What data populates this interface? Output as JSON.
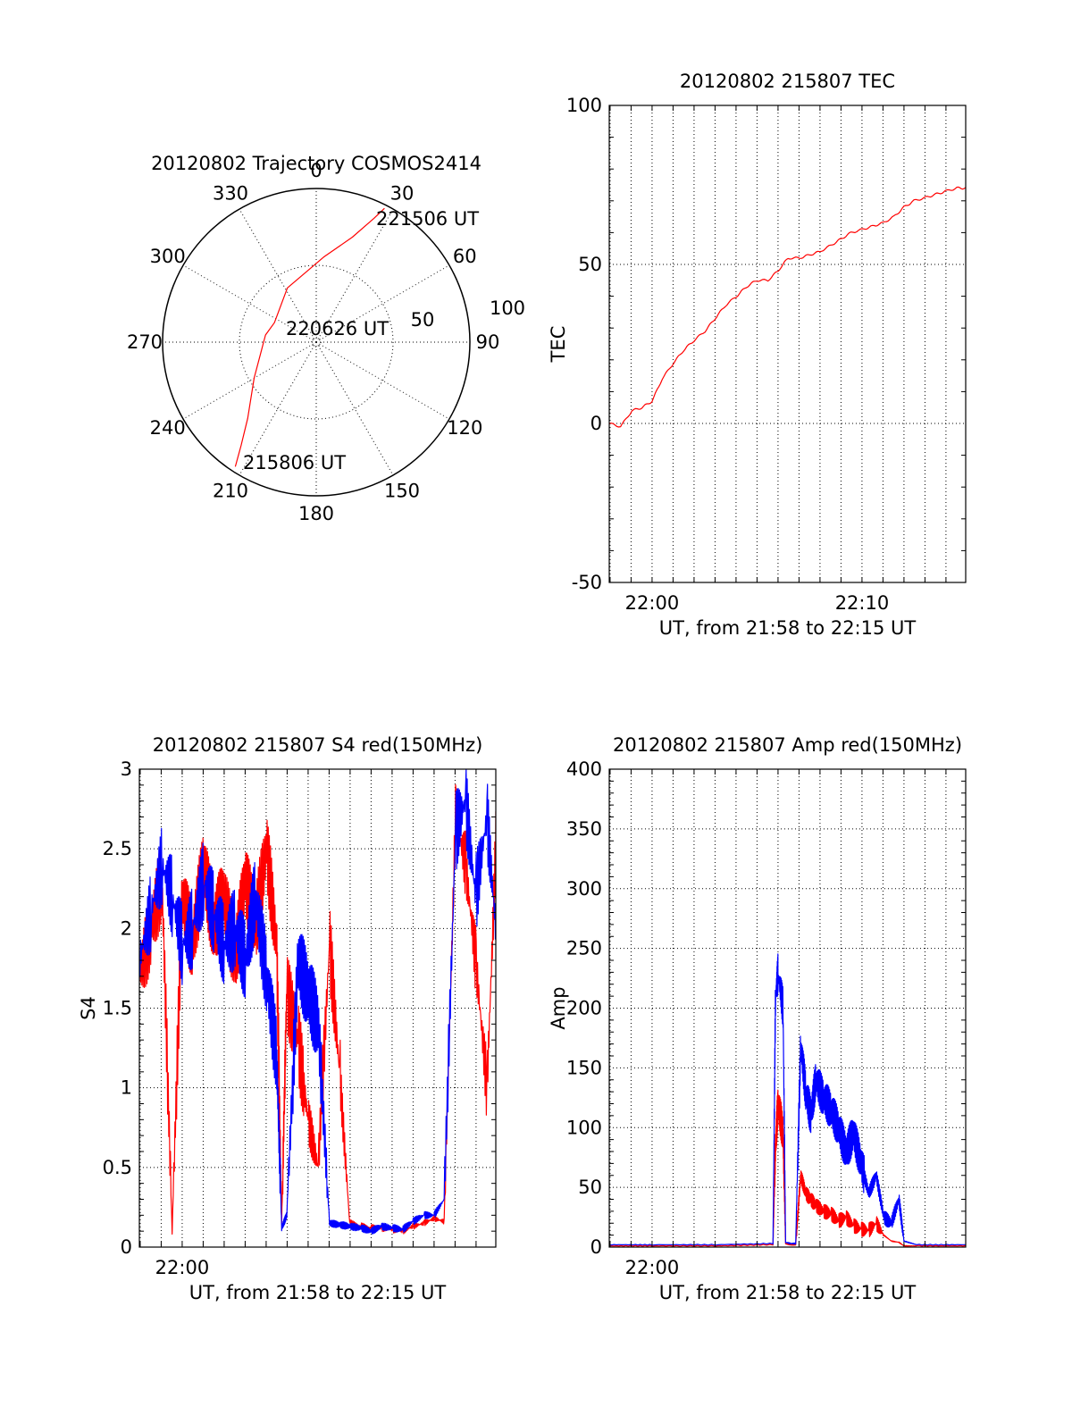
{
  "chart_data": [
    {
      "type": "polar-trajectory",
      "title": "20120802 Trajectory COSMOS2414",
      "azimuth_labels": [
        "0",
        "30",
        "60",
        "90",
        "120",
        "150",
        "180",
        "210",
        "240",
        "270",
        "300",
        "330"
      ],
      "elevation_ring_labels": [
        "50",
        "100"
      ],
      "trajectory_color": "#ff0000",
      "trajectory": [
        {
          "az": 213,
          "el": 3
        },
        {
          "az": 216,
          "el": 15
        },
        {
          "az": 222,
          "el": 30
        },
        {
          "az": 240,
          "el": 48
        },
        {
          "az": 278,
          "el": 60
        },
        {
          "az": 295,
          "el": 63
        },
        {
          "az": 332,
          "el": 54
        },
        {
          "az": 5,
          "el": 40
        },
        {
          "az": 19,
          "el": 25
        },
        {
          "az": 25,
          "el": 10
        },
        {
          "az": 27,
          "el": 2
        }
      ],
      "annotations": [
        {
          "text": "215806 UT",
          "az": 211,
          "el": 4
        },
        {
          "text": "220626 UT",
          "az": 60,
          "el": 83
        },
        {
          "text": "221506 UT",
          "az": 36,
          "el": 20
        }
      ]
    },
    {
      "type": "line",
      "title": "20120802 215807 TEC",
      "xlabel": "UT, from 21:58 to 22:15 UT",
      "ylabel": "TEC",
      "xlim": [
        21.966,
        22.249
      ],
      "ylim": [
        -50,
        100
      ],
      "yticks": [
        -50,
        0,
        50,
        100
      ],
      "xticks": [
        {
          "value": 22.0,
          "label": "22:00"
        },
        {
          "value": 22.1667,
          "label": "22:10"
        }
      ],
      "series": [
        {
          "color": "#ff0000",
          "x": [
            21.966,
            21.975,
            21.984,
            21.992,
            22.0,
            22.008,
            22.017,
            22.025,
            22.033,
            22.042,
            22.05,
            22.058,
            22.067,
            22.075,
            22.083,
            22.092,
            22.1,
            22.108,
            22.117,
            22.125,
            22.133,
            22.142,
            22.15,
            22.158,
            22.167,
            22.175,
            22.183,
            22.192,
            22.2,
            22.208,
            22.217,
            22.225,
            22.233,
            22.242,
            22.249
          ],
          "values": [
            0,
            -1,
            4,
            5,
            7,
            14,
            19,
            23,
            26,
            29,
            33,
            37,
            40,
            43,
            45,
            45,
            48,
            52,
            52,
            53,
            54,
            56,
            58,
            60,
            61,
            62,
            63,
            65,
            68,
            70,
            71,
            72,
            73,
            74,
            74
          ]
        }
      ]
    },
    {
      "type": "line",
      "title": "20120802 215807 S4 red(150MHz)",
      "xlabel": "UT, from 21:58 to 22:15 UT",
      "ylabel": "S4",
      "xlim": [
        21.966,
        22.249
      ],
      "ylim": [
        0,
        3
      ],
      "yticks": [
        0,
        0.5,
        1,
        1.5,
        2,
        2.5,
        3
      ],
      "yticklabels": [
        "0",
        "0.5",
        "1",
        "1.5",
        "2",
        "2.5",
        "3"
      ],
      "xticks": [
        {
          "value": 22.0,
          "label": "22:00"
        }
      ],
      "series": [
        {
          "color": "#ff0000",
          "x": [
            21.966,
            21.975,
            21.984,
            21.992,
            22.0,
            22.008,
            22.017,
            22.025,
            22.033,
            22.042,
            22.05,
            22.058,
            22.067,
            22.075,
            22.079,
            22.083,
            22.092,
            22.1,
            22.108,
            22.117,
            22.125,
            22.133,
            22.142,
            22.15,
            22.158,
            22.167,
            22.175,
            22.183,
            22.192,
            22.2,
            22.208,
            22.217,
            22.225,
            22.233,
            22.242,
            22.249
          ],
          "values": [
            1.7,
            2.0,
            2.3,
            0.1,
            2.2,
            1.9,
            2.4,
            2.0,
            2.2,
            1.8,
            2.3,
            2.0,
            2.5,
            1.9,
            0.15,
            1.6,
            1.3,
            0.8,
            0.5,
            1.9,
            1.1,
            0.15,
            0.13,
            0.12,
            0.12,
            0.11,
            0.1,
            0.13,
            0.15,
            0.18,
            0.16,
            2.7,
            2.4,
            1.8,
            1.0,
            2.5
          ]
        },
        {
          "color": "#0000ff",
          "x": [
            21.966,
            21.975,
            21.984,
            21.992,
            22.0,
            22.008,
            22.017,
            22.025,
            22.033,
            22.042,
            22.05,
            22.058,
            22.067,
            22.075,
            22.079,
            22.083,
            22.092,
            22.1,
            22.108,
            22.117,
            22.125,
            22.133,
            22.142,
            22.15,
            22.158,
            22.167,
            22.175,
            22.183,
            22.192,
            22.2,
            22.208,
            22.217,
            22.225,
            22.233,
            22.242,
            22.249
          ],
          "values": [
            1.8,
            2.1,
            2.4,
            2.2,
            1.9,
            2.0,
            2.3,
            2.1,
            1.9,
            2.0,
            1.8,
            2.2,
            1.7,
            1.2,
            0.12,
            0.2,
            1.8,
            1.6,
            1.4,
            0.15,
            0.14,
            0.13,
            0.12,
            0.1,
            0.13,
            0.12,
            0.11,
            0.16,
            0.2,
            0.2,
            0.3,
            2.6,
            2.8,
            2.2,
            2.7,
            2.0
          ]
        }
      ]
    },
    {
      "type": "line",
      "title": "20120802 215807 Amp red(150MHz)",
      "xlabel": "UT, from 21:58 to 22:15 UT",
      "ylabel": "Amp",
      "xlim": [
        21.966,
        22.249
      ],
      "ylim": [
        0,
        400
      ],
      "yticks": [
        0,
        50,
        100,
        150,
        200,
        250,
        300,
        350,
        400
      ],
      "xticks": [
        {
          "value": 22.0,
          "label": "22:00"
        }
      ],
      "series": [
        {
          "color": "#ff0000",
          "x": [
            21.966,
            22.0,
            22.05,
            22.096,
            22.098,
            22.1,
            22.104,
            22.106,
            22.11,
            22.114,
            22.118,
            22.122,
            22.126,
            22.13,
            22.136,
            22.142,
            22.148,
            22.154,
            22.16,
            22.166,
            22.172,
            22.178,
            22.184,
            22.19,
            22.196,
            22.2,
            22.21,
            22.249
          ],
          "values": [
            1,
            1,
            1,
            2,
            85,
            120,
            95,
            3,
            2,
            2,
            60,
            45,
            40,
            35,
            30,
            28,
            22,
            25,
            18,
            15,
            14,
            20,
            10,
            5,
            4,
            1,
            1,
            1
          ]
        },
        {
          "color": "#0000ff",
          "x": [
            21.966,
            22.0,
            22.05,
            22.096,
            22.098,
            22.1,
            22.104,
            22.106,
            22.11,
            22.114,
            22.118,
            22.122,
            22.126,
            22.13,
            22.136,
            22.142,
            22.148,
            22.154,
            22.16,
            22.166,
            22.172,
            22.178,
            22.184,
            22.19,
            22.196,
            22.2,
            22.21,
            22.249
          ],
          "values": [
            2,
            2,
            2,
            3,
            210,
            230,
            200,
            4,
            3,
            3,
            170,
            130,
            110,
            140,
            125,
            115,
            100,
            80,
            95,
            70,
            45,
            60,
            25,
            20,
            40,
            5,
            2,
            2
          ]
        }
      ]
    }
  ]
}
